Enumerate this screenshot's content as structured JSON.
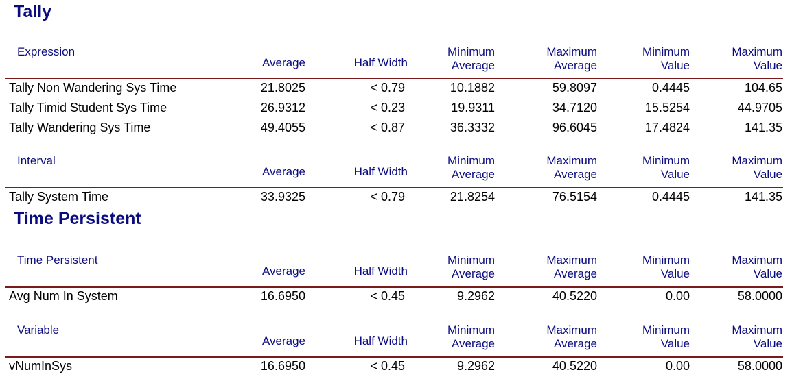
{
  "sections": {
    "tally": {
      "title": "Tally",
      "expression": {
        "category": "Expression",
        "headers": {
          "average": "Average",
          "half_width": "Half Width",
          "min_avg_1": "Minimum",
          "min_avg_2": "Average",
          "max_avg_1": "Maximum",
          "max_avg_2": "Average",
          "min_val_1": "Minimum",
          "min_val_2": "Value",
          "max_val_1": "Maximum",
          "max_val_2": "Value"
        },
        "rows": [
          {
            "name": "Tally Non Wandering Sys Time",
            "average": "21.8025",
            "half_width": "< 0.79",
            "min_avg": "10.1882",
            "max_avg": "59.8097",
            "min_val": "0.4445",
            "max_val": "104.65"
          },
          {
            "name": "Tally Timid Student Sys Time",
            "average": "26.9312",
            "half_width": "< 0.23",
            "min_avg": "19.9311",
            "max_avg": "34.7120",
            "min_val": "15.5254",
            "max_val": "44.9705"
          },
          {
            "name": "Tally Wandering Sys Time",
            "average": "49.4055",
            "half_width": "< 0.87",
            "min_avg": "36.3332",
            "max_avg": "96.6045",
            "min_val": "17.4824",
            "max_val": "141.35"
          }
        ]
      },
      "interval": {
        "category": "Interval",
        "headers": {
          "average": "Average",
          "half_width": "Half Width",
          "min_avg_1": "Minimum",
          "min_avg_2": "Average",
          "max_avg_1": "Maximum",
          "max_avg_2": "Average",
          "min_val_1": "Minimum",
          "min_val_2": "Value",
          "max_val_1": "Maximum",
          "max_val_2": "Value"
        },
        "rows": [
          {
            "name": "Tally System Time",
            "average": "33.9325",
            "half_width": "< 0.79",
            "min_avg": "21.8254",
            "max_avg": "76.5154",
            "min_val": "0.4445",
            "max_val": "141.35"
          }
        ]
      }
    },
    "time_persistent": {
      "title": "Time Persistent",
      "time_persistent": {
        "category": "Time Persistent",
        "headers": {
          "average": "Average",
          "half_width": "Half Width",
          "min_avg_1": "Minimum",
          "min_avg_2": "Average",
          "max_avg_1": "Maximum",
          "max_avg_2": "Average",
          "min_val_1": "Minimum",
          "min_val_2": "Value",
          "max_val_1": "Maximum",
          "max_val_2": "Value"
        },
        "rows": [
          {
            "name": "Avg Num In System",
            "average": "16.6950",
            "half_width": "< 0.45",
            "min_avg": "9.2962",
            "max_avg": "40.5220",
            "min_val": "0.00",
            "max_val": "58.0000"
          }
        ]
      },
      "variable": {
        "category": "Variable",
        "headers": {
          "average": "Average",
          "half_width": "Half Width",
          "min_avg_1": "Minimum",
          "min_avg_2": "Average",
          "max_avg_1": "Maximum",
          "max_avg_2": "Average",
          "min_val_1": "Minimum",
          "min_val_2": "Value",
          "max_val_1": "Maximum",
          "max_val_2": "Value"
        },
        "rows": [
          {
            "name": "vNumInSys",
            "average": "16.6950",
            "half_width": "< 0.45",
            "min_avg": "9.2962",
            "max_avg": "40.5220",
            "min_val": "0.00",
            "max_val": "58.0000"
          }
        ]
      }
    }
  }
}
